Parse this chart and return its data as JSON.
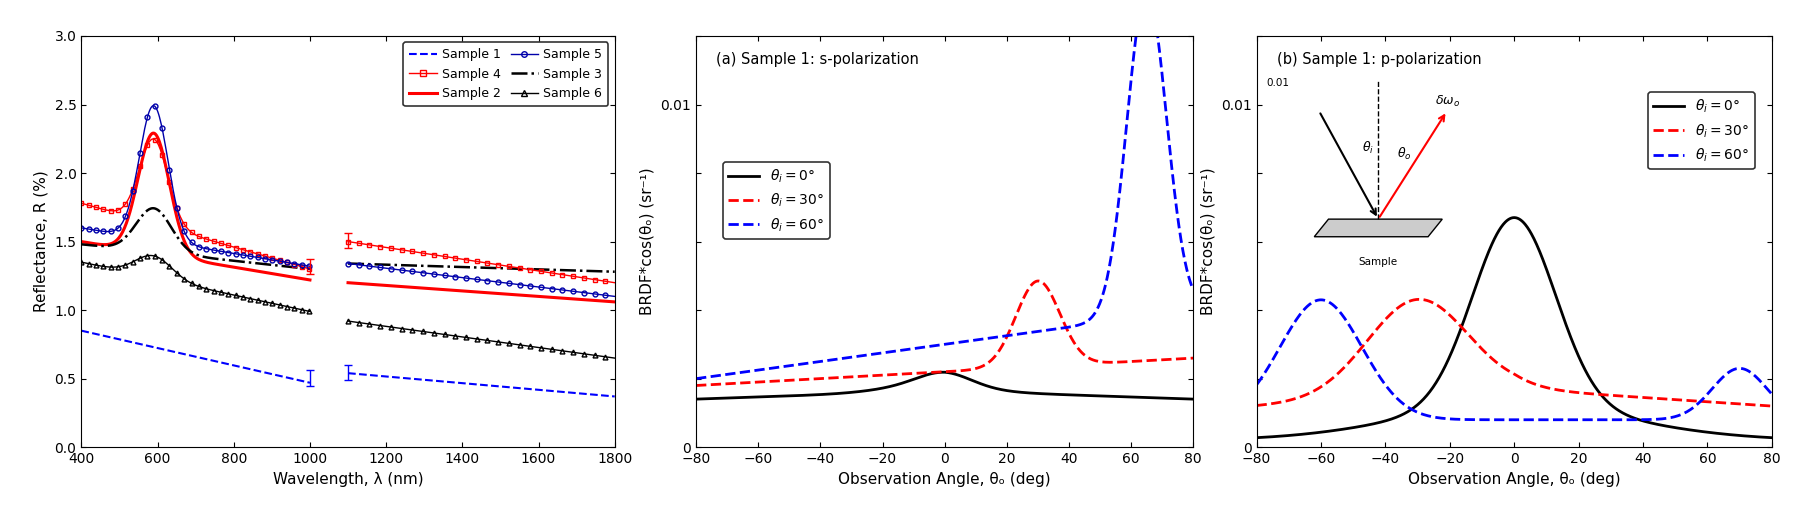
{
  "fig_width": 18.08,
  "fig_height": 5.14,
  "panel1": {
    "xlabel": "Wavelength, λ (nm)",
    "ylabel": "Reflectance, R (%)",
    "xlim": [
      400,
      1800
    ],
    "ylim": [
      0.0,
      3.0
    ],
    "yticks": [
      0.0,
      0.5,
      1.0,
      1.5,
      2.0,
      2.5,
      3.0
    ],
    "xticks": [
      400,
      600,
      800,
      1000,
      1200,
      1400,
      1600,
      1800
    ]
  },
  "panel2": {
    "title": "(a) Sample 1: s-polarization",
    "xlabel": "Observation Angle, θₒ (deg)",
    "ylabel": "BRDF*cos(θₒ) (sr⁻¹)",
    "xlim": [
      -80,
      80
    ],
    "ylim": [
      0,
      0.012
    ],
    "xticks": [
      -80,
      -60,
      -40,
      -20,
      0,
      20,
      40,
      60,
      80
    ]
  },
  "panel3": {
    "title": "(b) Sample 1: p-polarization",
    "xlabel": "Observation Angle, θₒ (deg)",
    "ylabel": "BRDF*cos(θₒ) (sr⁻¹)",
    "xlim": [
      -80,
      80
    ],
    "ylim": [
      0,
      0.012
    ],
    "xticks": [
      -80,
      -60,
      -40,
      -20,
      0,
      20,
      40,
      60,
      80
    ]
  },
  "colors": {
    "sample1": "#0000FF",
    "sample2": "#FF0000",
    "sample3": "#000000",
    "sample4": "#FF0000",
    "sample5": "#0000AA",
    "sample6": "#000000",
    "theta0": "#000000",
    "theta30": "#FF0000",
    "theta60": "#0000FF"
  }
}
